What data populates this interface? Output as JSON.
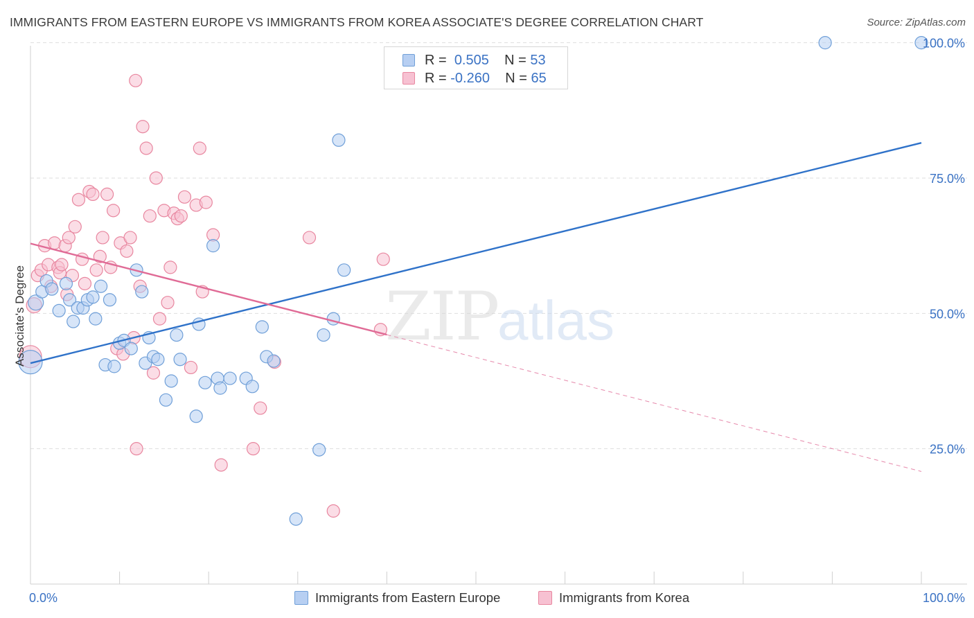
{
  "header": {
    "title": "IMMIGRANTS FROM EASTERN EUROPE VS IMMIGRANTS FROM KOREA ASSOCIATE'S DEGREE CORRELATION CHART",
    "source": "Source: ZipAtlas.com"
  },
  "watermark": {
    "zip": "ZIP",
    "atlas": "atlas"
  },
  "legend": {
    "r_label": "R =",
    "n_label": "N =",
    "rows": [
      {
        "r": "0.505",
        "n": "53"
      },
      {
        "r": "-0.260",
        "n": "65"
      }
    ]
  },
  "colors": {
    "blue_fill": "#b7cff2",
    "blue_stroke": "#6f9fd8",
    "blue_line": "#2f72c9",
    "pink_fill": "#f7c1d2",
    "pink_stroke": "#e8869f",
    "pink_line": "#e06b96",
    "axis_text": "#3a72c4",
    "grid": "#dedede"
  },
  "chart_data": {
    "type": "scatter",
    "title": "IMMIGRANTS FROM EASTERN EUROPE VS IMMIGRANTS FROM KOREA ASSOCIATE'S DEGREE CORRELATION CHART",
    "xlabel": "",
    "ylabel": "Associate's Degree",
    "xlim": [
      0,
      100
    ],
    "ylim": [
      0,
      102
    ],
    "x_tick_labels": [
      "0.0%",
      "100.0%"
    ],
    "y_ticks": [
      25,
      50,
      75,
      100
    ],
    "y_tick_labels": [
      "25.0%",
      "50.0%",
      "75.0%",
      "100.0%"
    ],
    "grid": true,
    "legend_position": "bottom",
    "series": [
      {
        "name": "Immigrants from Eastern Europe",
        "r": 0.505,
        "n": 53,
        "trend": {
          "x": [
            0,
            100
          ],
          "y": [
            40.8,
            81.5
          ],
          "dashed_from": null
        },
        "points": [
          [
            0.0,
            41,
            34
          ],
          [
            0.6,
            52,
            22
          ],
          [
            1.3,
            54,
            18
          ],
          [
            1.8,
            56,
            18
          ],
          [
            2.4,
            54.5,
            18
          ],
          [
            3.2,
            50.5,
            18
          ],
          [
            4.0,
            55.5,
            18
          ],
          [
            4.4,
            52.5,
            18
          ],
          [
            4.8,
            48.5,
            18
          ],
          [
            5.3,
            51,
            18
          ],
          [
            5.9,
            51,
            18
          ],
          [
            6.4,
            52.5,
            18
          ],
          [
            7.0,
            53,
            18
          ],
          [
            7.3,
            49,
            18
          ],
          [
            7.9,
            55,
            18
          ],
          [
            8.4,
            40.5,
            18
          ],
          [
            8.9,
            52.5,
            18
          ],
          [
            9.4,
            40.2,
            18
          ],
          [
            10.0,
            44.5,
            18
          ],
          [
            10.5,
            45,
            18
          ],
          [
            11.3,
            43.5,
            18
          ],
          [
            11.9,
            58,
            18
          ],
          [
            12.5,
            54,
            18
          ],
          [
            12.9,
            40.8,
            18
          ],
          [
            13.3,
            45.5,
            18
          ],
          [
            13.8,
            42,
            18
          ],
          [
            14.3,
            41.5,
            18
          ],
          [
            15.2,
            34,
            18
          ],
          [
            15.8,
            37.5,
            18
          ],
          [
            16.4,
            46,
            18
          ],
          [
            16.8,
            41.5,
            18
          ],
          [
            18.6,
            31,
            18
          ],
          [
            18.9,
            48,
            18
          ],
          [
            19.6,
            37.2,
            18
          ],
          [
            20.5,
            62.5,
            18
          ],
          [
            21.0,
            38,
            18
          ],
          [
            21.3,
            36.2,
            18
          ],
          [
            22.4,
            38,
            18
          ],
          [
            24.2,
            38,
            18
          ],
          [
            24.9,
            36.5,
            18
          ],
          [
            26.0,
            47.5,
            18
          ],
          [
            26.5,
            42,
            18
          ],
          [
            27.3,
            41.2,
            18
          ],
          [
            29.8,
            12,
            18
          ],
          [
            32.4,
            24.8,
            18
          ],
          [
            32.9,
            46,
            18
          ],
          [
            34.0,
            49,
            18
          ],
          [
            34.6,
            82,
            18
          ],
          [
            35.2,
            58,
            18
          ],
          [
            89.2,
            100,
            18
          ],
          [
            100.0,
            100,
            18
          ]
        ]
      },
      {
        "name": "Immigrants from Korea",
        "r": -0.26,
        "n": 65,
        "trend": {
          "x": [
            0,
            100
          ],
          "y": [
            62.9,
            20.8
          ],
          "dashed_from": 40
        },
        "points": [
          [
            0.0,
            42,
            32
          ],
          [
            0.4,
            51.5,
            22
          ],
          [
            0.8,
            57,
            18
          ],
          [
            1.2,
            58,
            18
          ],
          [
            1.6,
            62.5,
            18
          ],
          [
            2.0,
            59,
            18
          ],
          [
            2.3,
            55,
            18
          ],
          [
            2.7,
            63,
            18
          ],
          [
            3.1,
            58.5,
            18
          ],
          [
            3.3,
            57.5,
            18
          ],
          [
            3.5,
            59,
            18
          ],
          [
            3.9,
            62.5,
            18
          ],
          [
            4.3,
            64,
            18
          ],
          [
            4.7,
            57,
            18
          ],
          [
            4.1,
            53.5,
            18
          ],
          [
            5.0,
            66,
            18
          ],
          [
            5.4,
            71,
            18
          ],
          [
            5.8,
            60,
            18
          ],
          [
            6.1,
            55.5,
            18
          ],
          [
            6.6,
            72.5,
            18
          ],
          [
            7.0,
            72,
            18
          ],
          [
            7.4,
            58,
            18
          ],
          [
            7.8,
            60.5,
            18
          ],
          [
            8.1,
            64,
            18
          ],
          [
            8.6,
            72,
            18
          ],
          [
            9.0,
            58.5,
            18
          ],
          [
            9.3,
            69,
            18
          ],
          [
            9.7,
            43.5,
            18
          ],
          [
            10.1,
            63,
            18
          ],
          [
            10.4,
            42.5,
            18
          ],
          [
            10.8,
            61.5,
            18
          ],
          [
            11.2,
            64,
            18
          ],
          [
            11.6,
            45.5,
            18
          ],
          [
            11.9,
            25,
            18
          ],
          [
            12.3,
            55,
            18
          ],
          [
            11.8,
            93,
            18
          ],
          [
            12.6,
            84.5,
            18
          ],
          [
            13.0,
            80.5,
            18
          ],
          [
            13.4,
            68,
            18
          ],
          [
            13.8,
            39,
            18
          ],
          [
            14.1,
            75,
            18
          ],
          [
            14.5,
            49,
            18
          ],
          [
            15.0,
            69,
            18
          ],
          [
            15.4,
            52,
            18
          ],
          [
            15.7,
            58.5,
            18
          ],
          [
            16.1,
            68.5,
            18
          ],
          [
            16.5,
            67.5,
            18
          ],
          [
            16.9,
            68,
            18
          ],
          [
            17.3,
            71.5,
            18
          ],
          [
            18.0,
            40,
            18
          ],
          [
            18.6,
            70,
            18
          ],
          [
            19.0,
            80.5,
            18
          ],
          [
            19.3,
            54,
            18
          ],
          [
            19.7,
            70.5,
            18
          ],
          [
            20.5,
            64.5,
            18
          ],
          [
            21.4,
            22,
            18
          ],
          [
            25.0,
            25,
            18
          ],
          [
            25.8,
            32.5,
            18
          ],
          [
            27.4,
            41,
            18
          ],
          [
            31.3,
            64,
            18
          ],
          [
            34.0,
            13.5,
            18
          ],
          [
            39.3,
            47,
            18
          ],
          [
            39.6,
            60,
            18
          ]
        ]
      }
    ]
  }
}
